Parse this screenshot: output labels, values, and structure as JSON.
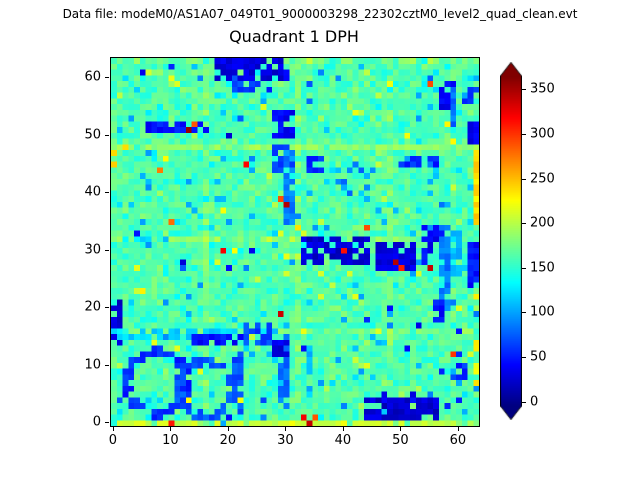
{
  "chart_data": {
    "type": "heatmap",
    "title": "Quadrant 1 DPH",
    "annotation": "Data file: modeM0/AS1A07_049T01_9000003298_22302cztM0_level2_quad_clean.evt",
    "grid_size": 64,
    "x_ticks": [
      0,
      10,
      20,
      30,
      40,
      50,
      60
    ],
    "y_ticks": [
      0,
      10,
      20,
      30,
      40,
      50,
      60
    ],
    "colormap": "jet",
    "vmin": -5,
    "vmax": 365,
    "colorbar": {
      "ticks": [
        0,
        50,
        100,
        150,
        200,
        250,
        300,
        350
      ],
      "extend": "both"
    },
    "base_value": 162,
    "noise_sd": 14,
    "noise_seed": 20230915,
    "speckle": {
      "dark_prob": 0.012,
      "dark_value": 70,
      "cyan_prob": 0.05,
      "cyan_drop": 50,
      "bright_prob": 0.03,
      "bright_add": 45,
      "hot_prob": 0.002
    },
    "features": [
      {
        "shape": "hline",
        "y": 63,
        "x1": 0,
        "x2": 63,
        "v": 200,
        "p": 0.5,
        "mix": 0.6
      },
      {
        "shape": "vline",
        "x": 16,
        "y1": 0,
        "y2": 63,
        "v": 200,
        "p": 0.6,
        "mix": 0.55
      },
      {
        "shape": "vline",
        "x": 32,
        "y1": 0,
        "y2": 63,
        "v": 200,
        "p": 0.6,
        "mix": 0.55
      },
      {
        "shape": "vline",
        "x": 48,
        "y1": 0,
        "y2": 63,
        "v": 200,
        "p": 0.6,
        "mix": 0.55
      },
      {
        "shape": "hline",
        "y": 16,
        "x1": 0,
        "x2": 63,
        "v": 200,
        "p": 0.6,
        "mix": 0.55
      },
      {
        "shape": "hline",
        "y": 32,
        "x1": 0,
        "x2": 63,
        "v": 200,
        "p": 0.6,
        "mix": 0.55
      },
      {
        "shape": "hline",
        "y": 48,
        "x1": 0,
        "x2": 63,
        "v": 205,
        "p": 0.7,
        "mix": 0.6
      },
      {
        "shape": "hline",
        "y": 0,
        "x1": 0,
        "x2": 63,
        "v": 222,
        "p": 0.8,
        "mix": 0.75
      },
      {
        "shape": "rect",
        "x": 18,
        "y": 60,
        "w": 13,
        "h": 4,
        "v": 32,
        "p": 0.85
      },
      {
        "shape": "rect",
        "x": 21,
        "y": 58,
        "w": 7,
        "h": 2,
        "v": 62,
        "p": 0.6
      },
      {
        "shape": "point",
        "x": 5,
        "y": 61,
        "v": 28
      },
      {
        "shape": "point",
        "x": 10,
        "y": 62,
        "v": 45
      },
      {
        "shape": "point",
        "x": 34,
        "y": 59,
        "v": 70
      },
      {
        "shape": "rect",
        "x": 57,
        "y": 55,
        "w": 3,
        "h": 5,
        "v": 40,
        "p": 0.8
      },
      {
        "shape": "rect",
        "x": 61,
        "y": 56,
        "w": 3,
        "h": 3,
        "v": 60,
        "p": 0.6
      },
      {
        "shape": "vline",
        "x": 59,
        "y1": 49,
        "y2": 58,
        "v": 82,
        "p": 0.8
      },
      {
        "shape": "rect",
        "x": 6,
        "y": 51,
        "w": 11,
        "h": 2,
        "v": 46,
        "p": 0.8
      },
      {
        "shape": "point",
        "x": 13,
        "y": 51,
        "v": 352
      },
      {
        "shape": "point",
        "x": 14,
        "y": 52,
        "v": 298
      },
      {
        "shape": "point",
        "x": 20,
        "y": 50,
        "v": 32
      },
      {
        "shape": "rect",
        "x": 28,
        "y": 50,
        "w": 4,
        "h": 5,
        "v": 40,
        "p": 0.8
      },
      {
        "shape": "rect",
        "x": 28,
        "y": 44,
        "w": 4,
        "h": 5,
        "v": 62,
        "p": 0.75
      },
      {
        "shape": "rect",
        "x": 34,
        "y": 44,
        "w": 3,
        "h": 3,
        "v": 56,
        "p": 0.8
      },
      {
        "shape": "vline",
        "x": 30,
        "y1": 35,
        "y2": 47,
        "v": 90,
        "w": 2,
        "p": 0.75
      },
      {
        "shape": "point",
        "x": 30,
        "y": 38,
        "v": 358
      },
      {
        "shape": "point",
        "x": 29,
        "y": 39,
        "v": 280
      },
      {
        "shape": "vline",
        "x": 63,
        "y1": 33,
        "y2": 47,
        "v": 238,
        "p": 0.85
      },
      {
        "shape": "vline",
        "x": 63,
        "y1": 5,
        "y2": 15,
        "v": 230,
        "p": 0.7
      },
      {
        "shape": "rect",
        "x": 62,
        "y": 24,
        "w": 2,
        "h": 8,
        "v": 46,
        "p": 0.8
      },
      {
        "shape": "rect",
        "x": 62,
        "y": 49,
        "w": 2,
        "h": 4,
        "v": 36,
        "p": 0.8
      },
      {
        "shape": "rect",
        "x": 50,
        "y": 45,
        "w": 7,
        "h": 2,
        "v": 56,
        "p": 0.5
      },
      {
        "shape": "rect",
        "x": 41,
        "y": 44,
        "w": 3,
        "h": 2,
        "v": 82,
        "p": 0.6
      },
      {
        "shape": "rect",
        "x": 33,
        "y": 28,
        "w": 12,
        "h": 5,
        "v": 26,
        "p": 0.8
      },
      {
        "shape": "rect",
        "x": 46,
        "y": 27,
        "w": 7,
        "h": 5,
        "v": 30,
        "p": 0.75
      },
      {
        "shape": "point",
        "x": 40,
        "y": 30,
        "v": 312
      },
      {
        "shape": "point",
        "x": 49,
        "y": 28,
        "v": 355
      },
      {
        "shape": "point",
        "x": 50,
        "y": 27,
        "v": 300
      },
      {
        "shape": "point",
        "x": 55,
        "y": 27,
        "v": 330
      },
      {
        "shape": "rect",
        "x": 54,
        "y": 28,
        "w": 4,
        "h": 7,
        "v": 42,
        "p": 0.75
      },
      {
        "shape": "vline",
        "x": 57,
        "y1": 20,
        "y2": 34,
        "v": 86,
        "w": 2,
        "p": 0.7
      },
      {
        "shape": "rect",
        "x": 59,
        "y": 26,
        "w": 2,
        "h": 8,
        "v": 112,
        "p": 0.6
      },
      {
        "shape": "point",
        "x": 12,
        "y": 28,
        "v": 36
      },
      {
        "shape": "point",
        "x": 20,
        "y": 27,
        "v": 46
      },
      {
        "shape": "point",
        "x": 24,
        "y": 30,
        "v": 40
      },
      {
        "shape": "point",
        "x": 4,
        "y": 33,
        "v": 50
      },
      {
        "shape": "rect",
        "x": 2,
        "y": 32,
        "w": 8,
        "h": 1,
        "v": 122,
        "p": 0.5
      },
      {
        "shape": "rect",
        "x": 0,
        "y": 14,
        "w": 2,
        "h": 8,
        "v": 26,
        "p": 0.85
      },
      {
        "shape": "rect",
        "x": 0,
        "y": 15,
        "w": 30,
        "h": 2,
        "v": 120,
        "p": 0.6
      },
      {
        "shape": "rect",
        "x": 14,
        "y": 14,
        "w": 9,
        "h": 2,
        "v": 46,
        "p": 0.7
      },
      {
        "shape": "rect",
        "x": 23,
        "y": 14,
        "w": 5,
        "h": 4,
        "v": 66,
        "p": 0.7
      },
      {
        "shape": "point",
        "x": 44,
        "y": 18,
        "v": 52
      },
      {
        "shape": "point",
        "x": 48,
        "y": 20,
        "v": 46
      },
      {
        "shape": "point",
        "x": 53,
        "y": 17,
        "v": 42
      },
      {
        "shape": "rect",
        "x": 56,
        "y": 18,
        "w": 2,
        "h": 4,
        "v": 46,
        "p": 0.7
      },
      {
        "shape": "rect",
        "x": 60,
        "y": 16,
        "w": 2,
        "h": 2,
        "v": 56,
        "p": 0.7
      },
      {
        "shape": "ring",
        "cx": 7.5,
        "cy": 7,
        "r": 5.2,
        "t": 1.5,
        "v": 55,
        "p": 0.9
      },
      {
        "shape": "ring",
        "cx": 16,
        "cy": 6,
        "r": 4.8,
        "t": 1.3,
        "v": 72,
        "p": 0.85
      },
      {
        "shape": "vline",
        "x": 21,
        "y1": 2,
        "y2": 13,
        "v": 72,
        "w": 2,
        "p": 0.7
      },
      {
        "shape": "vline",
        "x": 29,
        "y1": 4,
        "y2": 15,
        "v": 82,
        "w": 2,
        "p": 0.7
      },
      {
        "shape": "rect",
        "x": 28,
        "y": 12,
        "w": 3,
        "h": 3,
        "v": 30,
        "p": 0.85
      },
      {
        "shape": "vline",
        "x": 34,
        "y1": 5,
        "y2": 14,
        "v": 110,
        "p": 0.55
      },
      {
        "shape": "rect",
        "x": 44,
        "y": 1,
        "w": 13,
        "h": 4,
        "v": 26,
        "p": 0.8
      },
      {
        "shape": "rect",
        "x": 47,
        "y": 4,
        "w": 6,
        "h": 2,
        "v": 36,
        "p": 0.6
      },
      {
        "shape": "point",
        "x": 58,
        "y": 3,
        "v": 42
      },
      {
        "shape": "point",
        "x": 60,
        "y": 4,
        "v": 56
      },
      {
        "shape": "rect",
        "x": 57,
        "y": 8,
        "w": 5,
        "h": 5,
        "v": 56,
        "p": 0.35
      },
      {
        "shape": "point",
        "x": 51,
        "y": 13,
        "v": 46
      },
      {
        "shape": "point",
        "x": 33,
        "y": 13,
        "v": 42
      },
      {
        "shape": "point",
        "x": 10,
        "y": 0,
        "v": 300
      },
      {
        "shape": "point",
        "x": 33,
        "y": 1,
        "v": 320
      },
      {
        "shape": "point",
        "x": 34,
        "y": 0,
        "v": 352
      },
      {
        "shape": "point",
        "x": 35,
        "y": 1,
        "v": 282
      },
      {
        "shape": "point",
        "x": 26,
        "y": 4,
        "v": 62
      },
      {
        "shape": "point",
        "x": 20,
        "y": 1,
        "v": 52
      },
      {
        "shape": "point",
        "x": 44,
        "y": 34,
        "v": 290
      },
      {
        "shape": "point",
        "x": 8,
        "y": 44,
        "v": 262
      },
      {
        "shape": "point",
        "x": 0,
        "y": 45,
        "v": 248
      },
      {
        "shape": "point",
        "x": 0,
        "y": 47,
        "v": 240
      }
    ]
  }
}
